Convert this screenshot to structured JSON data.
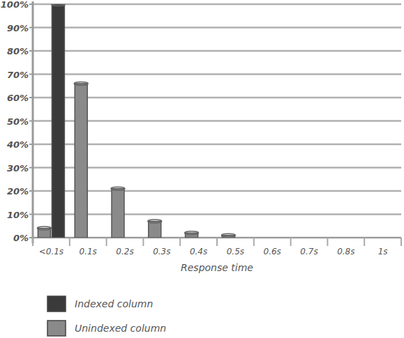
{
  "chart_data": {
    "type": "bar",
    "x_label": "Response time",
    "categories": [
      "<0.1s",
      "0.1s",
      "0.2s",
      "0.3s",
      "0.4s",
      "0.5s",
      "0.6s",
      "0.7s",
      "0.8s",
      "1s"
    ],
    "series": [
      {
        "name": "Indexed column",
        "color": "#3a3a3a",
        "values": [
          100,
          0,
          0,
          0,
          0,
          0,
          0,
          0,
          0,
          0
        ]
      },
      {
        "name": "Unindexed column",
        "color": "#8a8a8a",
        "values": [
          4,
          66,
          21,
          7,
          2,
          1,
          0,
          0,
          0,
          0
        ]
      }
    ],
    "ylim": [
      0,
      100
    ],
    "yticks": [
      {
        "value": 0,
        "label": "0%"
      },
      {
        "value": 10,
        "label": "10%"
      },
      {
        "value": 20,
        "label": "20%"
      },
      {
        "value": 30,
        "label": "30%"
      },
      {
        "value": 40,
        "label": "40%"
      },
      {
        "value": 50,
        "label": "50%"
      },
      {
        "value": 60,
        "label": "60%"
      },
      {
        "value": 70,
        "label": "70%"
      },
      {
        "value": 80,
        "label": "80%"
      },
      {
        "value": 90,
        "label": "90%"
      },
      {
        "value": 100,
        "label": "100%"
      }
    ],
    "grid": true,
    "legend": "bottom"
  }
}
